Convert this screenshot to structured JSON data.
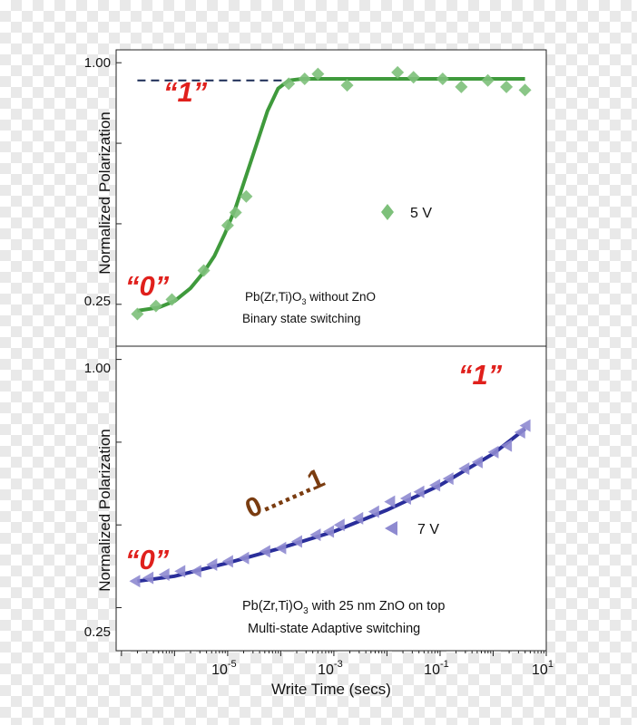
{
  "chart_data": [
    {
      "type": "scatter",
      "ylabel": "Normalized Polarization",
      "xscale": "log",
      "xlim_log10": [
        -7.1,
        1.0
      ],
      "ylim": [
        0.12,
        1.04
      ],
      "yticks": [
        0.25,
        1.0
      ],
      "ytick_labels": [
        "0.25",
        "1.00"
      ],
      "series": [
        {
          "name": "5 V",
          "marker": "diamond",
          "color": "#7dc07a",
          "x_log10": [
            -6.7,
            -6.35,
            -6.05,
            -5.45,
            -5.0,
            -4.85,
            -4.65,
            -3.85,
            -3.55,
            -3.3,
            -2.75,
            -1.8,
            -1.5,
            -0.95,
            -0.6,
            -0.1,
            0.25,
            0.6
          ],
          "y": [
            0.22,
            0.245,
            0.265,
            0.355,
            0.495,
            0.535,
            0.585,
            0.935,
            0.95,
            0.965,
            0.93,
            0.97,
            0.955,
            0.95,
            0.925,
            0.945,
            0.925,
            0.915
          ]
        },
        {
          "name": "fit",
          "type": "line",
          "color": "#3f9a3c",
          "x_log10": [
            -6.7,
            -6.3,
            -6.0,
            -5.7,
            -5.45,
            -5.25,
            -5.05,
            -4.85,
            -4.65,
            -4.45,
            -4.25,
            -4.05,
            -3.85,
            -3.6,
            -3.3,
            -2.0,
            0.6
          ],
          "y": [
            0.23,
            0.24,
            0.26,
            0.3,
            0.35,
            0.4,
            0.47,
            0.55,
            0.65,
            0.75,
            0.85,
            0.92,
            0.945,
            0.95,
            0.95,
            0.95,
            0.95
          ]
        }
      ],
      "reference_line": {
        "y": 0.945,
        "x_log10": [
          -6.7,
          -3.9
        ],
        "style": "dashed",
        "color": "#1a2a55"
      },
      "state_labels": [
        {
          "text": "“1”",
          "x_log10": -6.4,
          "y": 0.87
        },
        {
          "text": "“0”",
          "x_log10": -6.9,
          "y": 0.28
        }
      ],
      "annotations": [
        {
          "text_before": "Pb(Zr,Ti)O",
          "subscript": "3",
          "text_after": " without ZnO"
        },
        {
          "text": "Binary state switching"
        }
      ],
      "legend": {
        "label": "5 V",
        "placement": "center-right"
      }
    },
    {
      "type": "scatter",
      "xlabel": "Write Time (secs)",
      "ylabel": "Normalized Polarization",
      "xscale": "log",
      "xlim_log10": [
        -7.1,
        1.0
      ],
      "ylim": [
        0.12,
        1.04
      ],
      "yticks": [
        0.25,
        1.0
      ],
      "ytick_labels": [
        "0.25",
        "1.00"
      ],
      "xticks_log10": [
        -5,
        -3,
        -1,
        1
      ],
      "xtick_labels": [
        {
          "base": "10",
          "exp": "-5"
        },
        {
          "base": "10",
          "exp": "-3"
        },
        {
          "base": "10",
          "exp": "-1"
        },
        {
          "base": "10",
          "exp": "1"
        }
      ],
      "series": [
        {
          "name": "7 V",
          "marker": "triangle-left",
          "color": "#8e8ad0",
          "x_log10": [
            -6.75,
            -6.5,
            -6.2,
            -5.9,
            -5.6,
            -5.3,
            -5.0,
            -4.7,
            -4.3,
            -4.0,
            -3.7,
            -3.35,
            -3.1,
            -2.9,
            -2.55,
            -2.25,
            -1.95,
            -1.65,
            -1.4,
            -1.1,
            -0.85,
            -0.55,
            -0.3,
            0.0,
            0.25,
            0.5,
            0.6
          ],
          "y": [
            0.33,
            0.34,
            0.35,
            0.36,
            0.36,
            0.38,
            0.39,
            0.4,
            0.42,
            0.43,
            0.45,
            0.47,
            0.48,
            0.5,
            0.52,
            0.54,
            0.57,
            0.58,
            0.6,
            0.62,
            0.64,
            0.67,
            0.69,
            0.72,
            0.74,
            0.78,
            0.8
          ]
        },
        {
          "name": "fit",
          "type": "line",
          "color": "#2a2e9a",
          "x_log10": [
            -6.7,
            -6.0,
            -5.0,
            -4.0,
            -3.0,
            -2.0,
            -1.0,
            0.0,
            0.6
          ],
          "y": [
            0.33,
            0.345,
            0.385,
            0.43,
            0.48,
            0.545,
            0.62,
            0.715,
            0.79
          ]
        }
      ],
      "state_labels": [
        {
          "text": "“1”",
          "x_log10": 0.0,
          "y": 0.88
        },
        {
          "text": "“0”",
          "x_log10": -6.9,
          "y": 0.4
        }
      ],
      "mid_label": {
        "text": "0.......1",
        "x_log10": -4.2,
        "y": 0.5,
        "angle_deg": -24
      },
      "annotations": [
        {
          "text_before": "Pb(Zr,Ti)O",
          "subscript": "3",
          "text_after": " with 25 nm ZnO on top"
        },
        {
          "text": "Multi-state Adaptive switching"
        }
      ],
      "legend": {
        "label": "7 V",
        "placement": "center-right"
      }
    }
  ]
}
